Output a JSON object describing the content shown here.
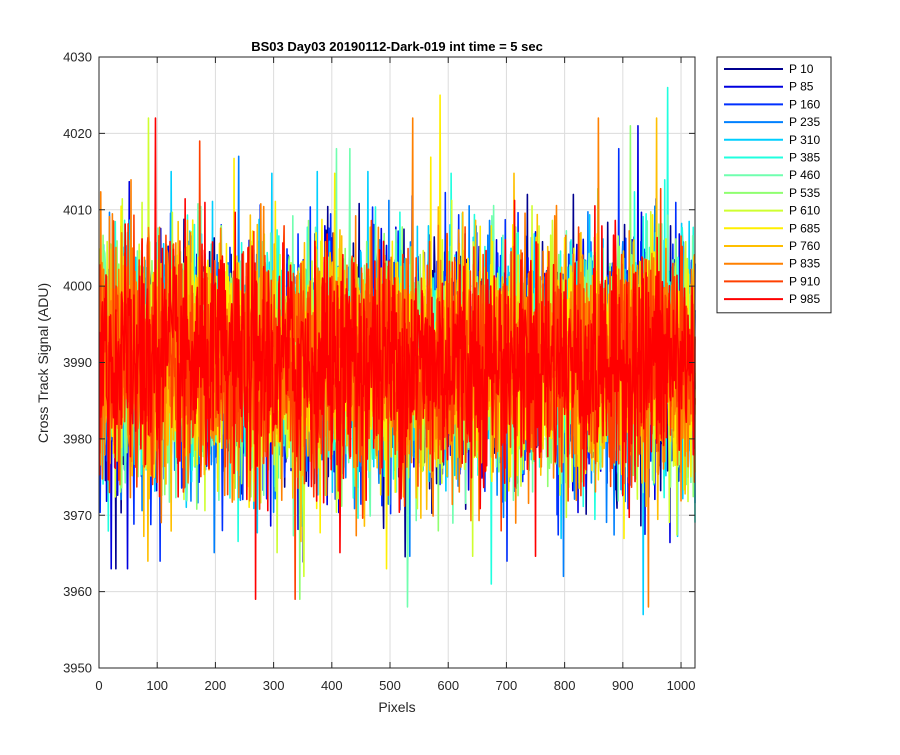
{
  "chart_data": {
    "type": "line",
    "title": "BS03 Day03 20190112-Dark-019 int time = 5 sec",
    "xlabel": "Pixels",
    "ylabel": "Cross Track Signal (ADU)",
    "xlim": [
      0,
      1024
    ],
    "ylim": [
      3950,
      4030
    ],
    "xticks": [
      0,
      100,
      200,
      300,
      400,
      500,
      600,
      700,
      800,
      900,
      1000
    ],
    "yticks": [
      3950,
      3960,
      3970,
      3980,
      3990,
      4000,
      4010,
      4020,
      4030
    ],
    "grid": true,
    "legend_position": "outside-top-right",
    "points_per_series": 1024,
    "series": [
      {
        "name": "P 10",
        "color": "#00008F",
        "mean": 3990,
        "min": 3963,
        "max": 4012
      },
      {
        "name": "P 85",
        "color": "#0000DF",
        "mean": 3990,
        "min": 3963,
        "max": 4021
      },
      {
        "name": "P 160",
        "color": "#0030FF",
        "mean": 3990,
        "min": 3964,
        "max": 4018
      },
      {
        "name": "P 235",
        "color": "#0080FF",
        "mean": 3990,
        "min": 3962,
        "max": 4017
      },
      {
        "name": "P 310",
        "color": "#00CFFF",
        "mean": 3990,
        "min": 3957,
        "max": 4015
      },
      {
        "name": "P 385",
        "color": "#20FFDF",
        "mean": 3990,
        "min": 3961,
        "max": 4026
      },
      {
        "name": "P 460",
        "color": "#70FFAF",
        "mean": 3990,
        "min": 3958,
        "max": 4018
      },
      {
        "name": "P 535",
        "color": "#8FFF70",
        "mean": 3990,
        "min": 3959,
        "max": 4021
      },
      {
        "name": "P 610",
        "color": "#CFFF30",
        "mean": 3990,
        "min": 3962,
        "max": 4022
      },
      {
        "name": "P 685",
        "color": "#FFEF00",
        "mean": 3990,
        "min": 3963,
        "max": 4025
      },
      {
        "name": "P 760",
        "color": "#FFBF00",
        "mean": 3990,
        "min": 3964,
        "max": 4022
      },
      {
        "name": "P 835",
        "color": "#FF8000",
        "mean": 3990,
        "min": 3958,
        "max": 4022
      },
      {
        "name": "P 910",
        "color": "#FF4000",
        "mean": 3990,
        "min": 3959,
        "max": 4019
      },
      {
        "name": "P 985",
        "color": "#FF0000",
        "mean": 3990,
        "min": 3959,
        "max": 4022
      }
    ]
  }
}
